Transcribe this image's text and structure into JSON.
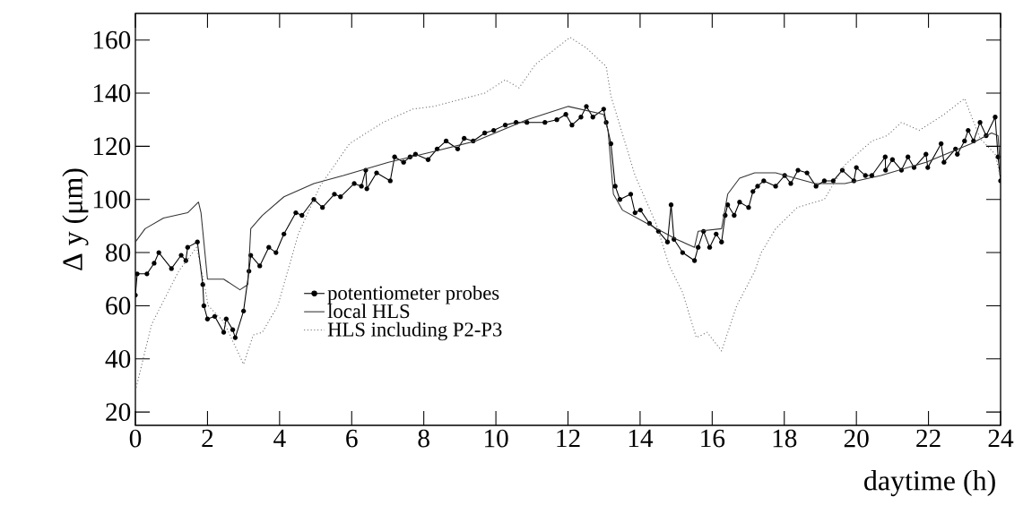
{
  "chart_data": {
    "type": "line",
    "xlabel": "daytime (h)",
    "ylabel": "Δ y (μm)",
    "xlim": [
      0,
      24
    ],
    "ylim": [
      15,
      170
    ],
    "xticks": [
      0,
      2,
      4,
      6,
      8,
      10,
      12,
      14,
      16,
      18,
      20,
      22,
      24
    ],
    "yticks": [
      20,
      40,
      60,
      80,
      100,
      120,
      140,
      160
    ],
    "grid": false,
    "legend": "bottom left",
    "series": [
      {
        "name": "potentiometer probes",
        "color": "#000000",
        "marker": "circle",
        "line_style": "solid",
        "x": [
          0,
          0.05,
          0.32,
          0.52,
          0.65,
          1.0,
          1.27,
          1.4,
          1.45,
          1.72,
          1.87,
          1.9,
          2.0,
          2.2,
          2.45,
          2.52,
          2.7,
          2.77,
          3.0,
          3.15,
          3.2,
          3.45,
          3.7,
          3.9,
          4.12,
          4.45,
          4.62,
          4.95,
          5.19,
          5.52,
          5.69,
          6.07,
          6.27,
          6.39,
          6.42,
          6.69,
          7.07,
          7.19,
          7.44,
          7.62,
          7.77,
          8.12,
          8.37,
          8.62,
          8.94,
          9.12,
          9.37,
          9.69,
          9.94,
          10.26,
          10.56,
          10.86,
          11.36,
          11.69,
          11.94,
          12.11,
          12.36,
          12.51,
          12.69,
          12.99,
          13.06,
          13.19,
          13.31,
          13.44,
          13.74,
          13.86,
          14.01,
          14.26,
          14.51,
          14.76,
          14.86,
          14.94,
          15.18,
          15.51,
          15.61,
          15.76,
          15.93,
          16.11,
          16.26,
          16.36,
          16.43,
          16.61,
          16.76,
          17.01,
          17.13,
          17.26,
          17.43,
          17.76,
          18.01,
          18.18,
          18.38,
          18.63,
          18.88,
          19.11,
          19.36,
          19.61,
          19.93,
          20.0,
          20.25,
          20.43,
          20.8,
          20.81,
          21.0,
          21.25,
          21.43,
          21.6,
          21.93,
          21.98,
          22.35,
          22.43,
          22.75,
          22.8,
          23.0,
          23.1,
          23.25,
          23.43,
          23.6,
          23.85,
          23.93,
          24.0
        ],
        "values": [
          64,
          72,
          72,
          76,
          80,
          74,
          79,
          77,
          82,
          84,
          68,
          60,
          55,
          56,
          50,
          55,
          51,
          48,
          58,
          73,
          79,
          75,
          82,
          80,
          87,
          95,
          94,
          100,
          97,
          102,
          101,
          106,
          105,
          111,
          104,
          110,
          107,
          116,
          114,
          116,
          117,
          115,
          119,
          122,
          119,
          123,
          122,
          125,
          126,
          128,
          129,
          129,
          129,
          130,
          132,
          128,
          131,
          135,
          131,
          134,
          129,
          121,
          105,
          100,
          102,
          95,
          96,
          91,
          88,
          84,
          98,
          85,
          80,
          77,
          82,
          88,
          82,
          87,
          84,
          94,
          98,
          94,
          99,
          97,
          103,
          105,
          107,
          105,
          109,
          106,
          111,
          110,
          105,
          107,
          107,
          111,
          107,
          112,
          109,
          109,
          116,
          111,
          115,
          111,
          116,
          112,
          117,
          112,
          121,
          114,
          119,
          117,
          122,
          126,
          122,
          129,
          124,
          131,
          116,
          107
        ]
      },
      {
        "name": "local HLS",
        "color": "#333333",
        "marker": "none",
        "line_style": "solid",
        "x": [
          0,
          0.27,
          0.78,
          1.45,
          1.75,
          1.82,
          2.0,
          2.45,
          2.9,
          3.12,
          3.2,
          3.52,
          4.12,
          4.95,
          5.77,
          7.02,
          8.27,
          9.44,
          10.86,
          12.01,
          12.99,
          13.11,
          13.26,
          13.51,
          14.19,
          15.01,
          15.51,
          15.61,
          16.26,
          16.43,
          16.76,
          17.18,
          17.76,
          18.86,
          19.68,
          20.68,
          21.93,
          23.18,
          23.75,
          23.93,
          24.0
        ],
        "values": [
          84,
          89,
          93,
          95,
          99,
          95,
          70,
          70,
          66,
          68,
          89,
          94,
          101,
          106,
          109,
          114,
          118,
          122,
          130,
          135,
          132,
          126,
          102,
          96,
          91,
          85,
          82,
          88,
          89,
          102,
          108,
          110,
          110,
          106,
          106,
          109,
          114,
          121,
          125,
          124,
          110
        ]
      },
      {
        "name": "HLS including P2-P3",
        "color": "#666666",
        "marker": "none",
        "line_style": "dotted",
        "x": [
          0,
          0.45,
          1.2,
          1.7,
          1.87,
          2.02,
          2.45,
          3.0,
          3.27,
          3.52,
          3.95,
          4.52,
          5.12,
          5.94,
          6.87,
          7.69,
          8.27,
          9.12,
          9.69,
          10.26,
          10.64,
          11.11,
          12.06,
          12.51,
          13.06,
          13.19,
          13.86,
          14.44,
          14.81,
          15.18,
          15.56,
          15.86,
          16.26,
          16.68,
          17.18,
          17.36,
          17.76,
          18.36,
          19.11,
          19.68,
          20.43,
          20.85,
          21.25,
          21.75,
          22.43,
          23.0,
          23.43,
          23.85,
          24.0
        ],
        "values": [
          28,
          53,
          73,
          82,
          71,
          60,
          54,
          38,
          49,
          50,
          60,
          87,
          105,
          121,
          129,
          134,
          135,
          138,
          140,
          145,
          142,
          151,
          161,
          157,
          150,
          139,
          109,
          91,
          75,
          65,
          48,
          50,
          43,
          60,
          73,
          80,
          89,
          97,
          100,
          113,
          122,
          124,
          129,
          126,
          132,
          138,
          123,
          117,
          108
        ]
      }
    ]
  }
}
